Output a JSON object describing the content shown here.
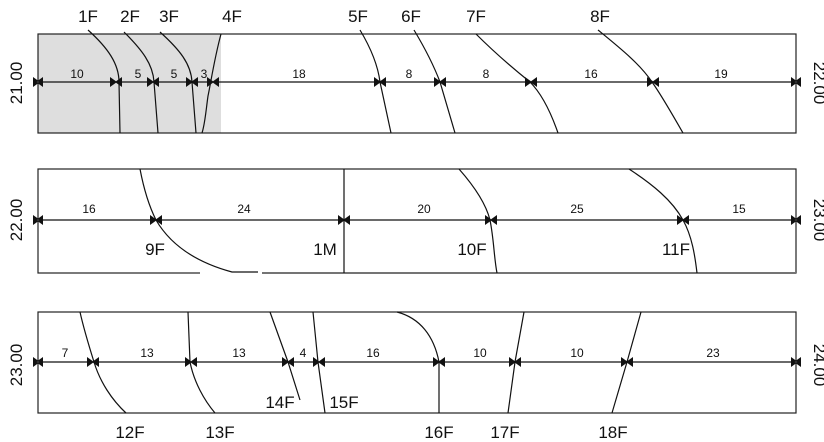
{
  "strips": [
    {
      "start_label": "21.00",
      "end_label": "22.00",
      "segments": [
        "10",
        "5",
        "5",
        "3",
        "18",
        "8",
        "8",
        "16",
        "19"
      ],
      "faults": [
        "1F",
        "2F",
        "3F",
        "4F",
        "5F",
        "6F",
        "7F",
        "8F"
      ]
    },
    {
      "start_label": "22.00",
      "end_label": "23.00",
      "segments": [
        "16",
        "24",
        "20",
        "25",
        "15"
      ],
      "faults": [
        "9F",
        "1M",
        "10F",
        "11F"
      ]
    },
    {
      "start_label": "23.00",
      "end_label": "24.00",
      "segments": [
        "7",
        "13",
        "13",
        "4",
        "16",
        "10",
        "10",
        "23"
      ],
      "faults": [
        "12F",
        "13F",
        "14F",
        "15F",
        "16F",
        "17F",
        "18F"
      ]
    }
  ],
  "colors": {
    "shaded": "#dedede",
    "line": "#111111"
  }
}
